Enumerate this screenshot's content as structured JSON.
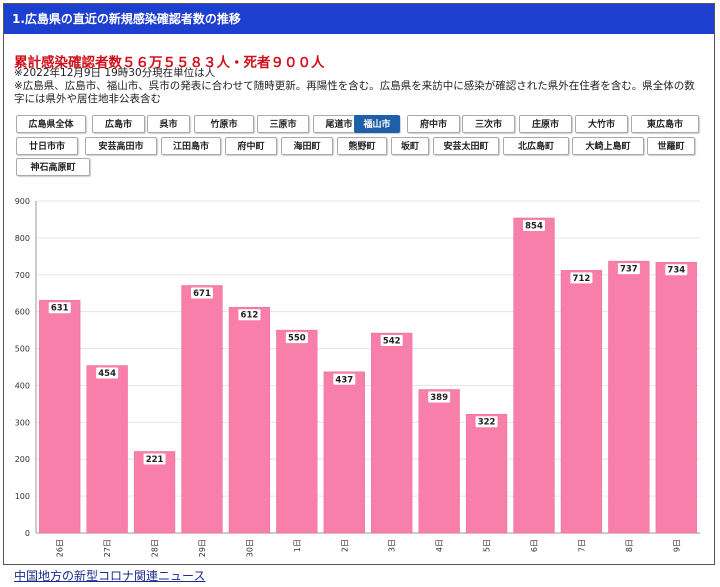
{
  "header": {
    "title": "1.広島県の直近の新規感染確認者数の推移"
  },
  "summary": {
    "headline": "累計感染確認者数５６万５５８３人・死者９００人",
    "note_line1": "※2022年12月9日 19時30分現在単位は人",
    "note_line2": "※広島県、広島市、福山市、呉市の発表に合わせて随時更新。再陽性を含む。広島県を来訪中に感染が確認された県外在住者を含む。県全体の数字には県外や居住地非公表含む"
  },
  "region_buttons": [
    {
      "label": "広島県全体",
      "active": false
    },
    {
      "label": "広島市",
      "active": false
    },
    {
      "label": "呉市",
      "active": false
    },
    {
      "label": "竹原市",
      "active": false
    },
    {
      "label": "三原市",
      "active": false
    },
    {
      "label": "尾道市",
      "active": false
    },
    {
      "label": "福山市",
      "active": true
    },
    {
      "label": "府中市",
      "active": false
    },
    {
      "label": "三次市",
      "active": false
    },
    {
      "label": "庄原市",
      "active": false
    },
    {
      "label": "大竹市",
      "active": false
    },
    {
      "label": "東広島市",
      "active": false
    },
    {
      "label": "廿日市市",
      "active": false
    },
    {
      "label": "安芸高田市",
      "active": false
    },
    {
      "label": "江田島市",
      "active": false
    },
    {
      "label": "府中町",
      "active": false
    },
    {
      "label": "海田町",
      "active": false
    },
    {
      "label": "熊野町",
      "active": false
    },
    {
      "label": "坂町",
      "active": false
    },
    {
      "label": "安芸太田町",
      "active": false
    },
    {
      "label": "北広島町",
      "active": false
    },
    {
      "label": "大崎上島町",
      "active": false
    },
    {
      "label": "世羅町",
      "active": false
    },
    {
      "label": "神石高原町",
      "active": false
    }
  ],
  "chart_data": {
    "type": "bar",
    "categories": [
      "26日",
      "27日",
      "28日",
      "29日",
      "30日",
      "1日",
      "2日",
      "3日",
      "4日",
      "5日",
      "6日",
      "7日",
      "8日",
      "9日"
    ],
    "values": [
      631,
      454,
      221,
      671,
      612,
      550,
      437,
      542,
      389,
      322,
      854,
      712,
      737,
      734
    ],
    "ylim": [
      0,
      900
    ],
    "yticks": [
      0,
      100,
      200,
      300,
      400,
      500,
      600,
      700,
      800,
      900
    ],
    "grid": true,
    "bar_color": "#f77fa9",
    "bar_edge_color": "#e96d97"
  },
  "footer": {
    "link_text": "中国地方の新型コロナ関連ニュース"
  },
  "colors": {
    "header_bg": "#1d3fcf",
    "headline": "#d0101a",
    "active_button": "#1f5fa8"
  }
}
